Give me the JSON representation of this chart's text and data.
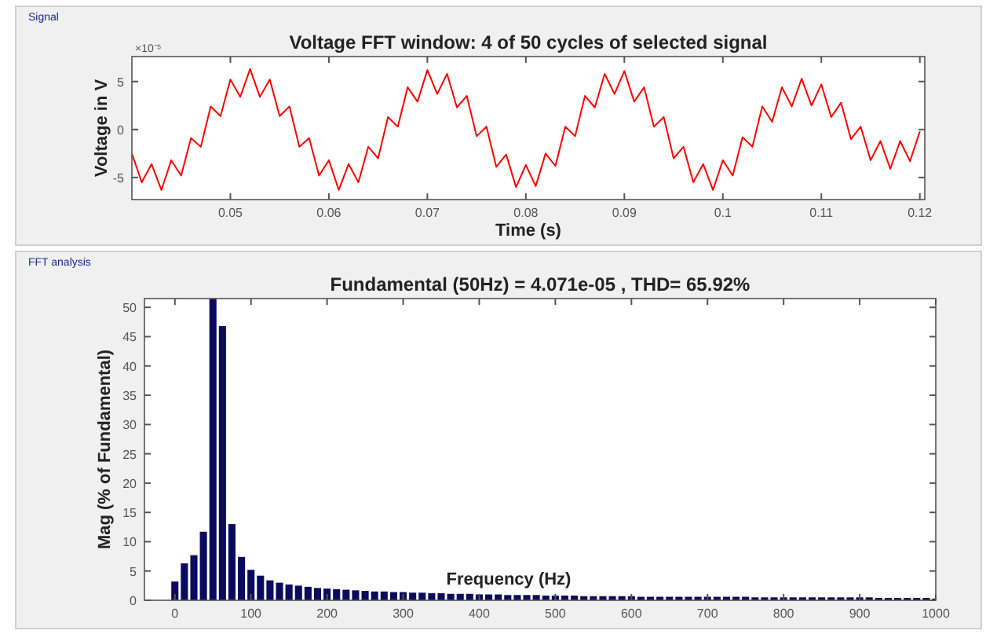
{
  "chart_data": [
    {
      "type": "line",
      "title": "Voltage FFT window: 4 of 50 cycles of selected signal",
      "xlabel": "Time (s)",
      "ylabel": "Voltage in V",
      "annotations": [
        "Signal",
        "×10⁻⁵"
      ],
      "x": [
        0.04,
        0.041,
        0.042,
        0.043,
        0.044,
        0.045,
        0.046,
        0.047,
        0.048,
        0.049,
        0.05,
        0.051,
        0.052,
        0.053,
        0.054,
        0.055,
        0.056,
        0.057,
        0.058,
        0.059,
        0.06,
        0.061,
        0.062,
        0.063,
        0.064,
        0.065,
        0.066,
        0.067,
        0.068,
        0.069,
        0.07,
        0.071,
        0.072,
        0.073,
        0.074,
        0.075,
        0.076,
        0.077,
        0.078,
        0.079,
        0.08,
        0.081,
        0.082,
        0.083,
        0.084,
        0.085,
        0.086,
        0.087,
        0.088,
        0.089,
        0.09,
        0.091,
        0.092,
        0.093,
        0.094,
        0.095,
        0.096,
        0.097,
        0.098,
        0.099,
        0.1,
        0.101,
        0.102,
        0.103,
        0.104,
        0.105,
        0.106,
        0.107,
        0.108,
        0.109,
        0.11,
        0.111,
        0.112,
        0.113,
        0.114,
        0.115,
        0.116,
        0.117,
        0.118,
        0.119,
        0.12
      ],
      "series": [
        {
          "color": "#ff0000",
          "values": [
            -2.5,
            -5.5,
            -3.6,
            -6.3,
            -3.2,
            -4.8,
            -0.9,
            -1.8,
            2.4,
            1.4,
            5.2,
            3.4,
            6.3,
            3.4,
            5.2,
            1.4,
            2.4,
            -1.8,
            -0.9,
            -4.8,
            -3.2,
            -6.3,
            -3.6,
            -5.5,
            -1.8,
            -3.0,
            1.3,
            0.3,
            4.4,
            2.9,
            6.2,
            3.7,
            5.8,
            2.3,
            3.5,
            -0.7,
            0.3,
            -3.9,
            -2.6,
            -6.0,
            -3.7,
            -5.9,
            -2.5,
            -3.8,
            0.3,
            -0.7,
            3.5,
            2.3,
            5.8,
            3.7,
            6.1,
            2.9,
            4.4,
            0.3,
            1.3,
            -3.0,
            -1.8,
            -5.5,
            -3.6,
            -6.3,
            -3.2,
            -4.8,
            -0.8,
            -1.8,
            2.4,
            0.8,
            4.4,
            2.4,
            5.3,
            2.5,
            4.7,
            1.3,
            2.8,
            -1.0,
            0.3,
            -3.2,
            -1.2,
            -4.1,
            -1.2,
            -3.3,
            -0.2
          ]
        }
      ],
      "xlim": [
        0.04,
        0.1205
      ],
      "ylim": [
        -7.3,
        7.6
      ],
      "xticks": [
        0.05,
        0.06,
        0.07,
        0.08,
        0.09,
        0.1,
        0.11,
        0.12
      ],
      "yticks": [
        -5,
        0,
        5
      ],
      "grid": false
    },
    {
      "type": "bar",
      "title": "Fundamental (50Hz) = 4.071e-05 , THD= 65.92%",
      "xlabel": "Frequency (Hz)",
      "ylabel": "Mag (% of Fundamental)",
      "annotations": [
        "FFT analysis"
      ],
      "x": [
        0,
        12.5,
        25,
        37.5,
        50,
        62.5,
        75,
        87.5,
        100,
        112.5,
        125,
        137.5,
        150,
        162.5,
        175,
        187.5,
        200,
        212.5,
        225,
        237.5,
        250,
        262.5,
        275,
        287.5,
        300,
        312.5,
        325,
        337.5,
        350,
        362.5,
        375,
        387.5,
        400,
        412.5,
        425,
        437.5,
        450,
        462.5,
        475,
        487.5,
        500,
        512.5,
        525,
        537.5,
        550,
        562.5,
        575,
        587.5,
        600,
        612.5,
        625,
        637.5,
        650,
        662.5,
        675,
        687.5,
        700,
        712.5,
        725,
        737.5,
        750,
        762.5,
        775,
        787.5,
        800,
        812.5,
        825,
        837.5,
        850,
        862.5,
        875,
        887.5,
        900,
        912.5,
        925,
        937.5,
        950,
        962.5,
        975,
        987.5,
        1000
      ],
      "series": [
        {
          "color": "#0b0b5e",
          "values": [
            3.2,
            6.3,
            7.7,
            11.7,
            51.5,
            46.8,
            13,
            7.4,
            5.2,
            4.2,
            3.4,
            3.0,
            2.7,
            2.5,
            2.3,
            2.1,
            2.0,
            1.9,
            1.8,
            1.7,
            1.6,
            1.5,
            1.5,
            1.4,
            1.4,
            1.3,
            1.3,
            1.2,
            1.2,
            1.1,
            1.1,
            1.1,
            1.0,
            1.0,
            1.0,
            0.9,
            0.9,
            0.9,
            0.9,
            0.8,
            0.8,
            0.8,
            0.8,
            0.7,
            0.7,
            0.7,
            0.7,
            0.7,
            0.7,
            0.6,
            0.6,
            0.6,
            0.6,
            0.6,
            0.6,
            0.6,
            0.6,
            0.6,
            0.6,
            0.6,
            0.6,
            0.5,
            0.5,
            0.5,
            0.5,
            0.5,
            0.5,
            0.5,
            0.5,
            0.5,
            0.5,
            0.5,
            0.5,
            0.5,
            0.4,
            0.4,
            0.4,
            0.4,
            0.4,
            0.4,
            0.3
          ]
        }
      ],
      "xlim": [
        -40,
        1000
      ],
      "ylim": [
        0,
        51.5
      ],
      "xticks": [
        0,
        100,
        200,
        300,
        400,
        500,
        600,
        700,
        800,
        900,
        1000
      ],
      "yticks": [
        0,
        5,
        10,
        15,
        20,
        25,
        30,
        35,
        40,
        45,
        50
      ],
      "grid": false
    }
  ]
}
